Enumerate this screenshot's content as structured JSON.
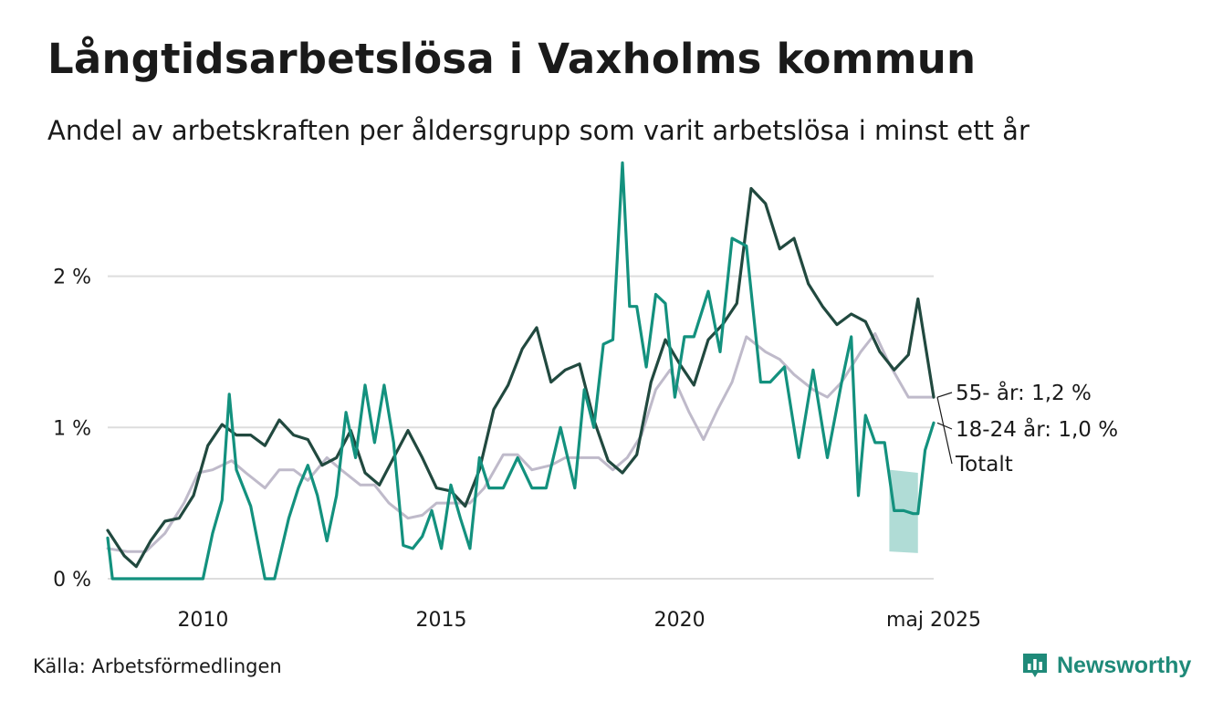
{
  "title": "Långtidsarbetslösa i Vaxholms kommun",
  "subtitle": "Andel av arbetskraften per åldersgrupp som varit arbetslösa i minst ett år",
  "source": "Källa: Arbetsförmedlingen",
  "brand": "Newsworthy",
  "colors": {
    "s55": "#21493f",
    "s1824": "#13917e",
    "total": "#bfbaca",
    "band": "#a7d8d1",
    "grid": "#dddddd"
  },
  "chart_data": {
    "type": "line",
    "ylim": [
      0,
      2.8
    ],
    "xlim": [
      2008.0,
      2025.33
    ],
    "yticks": [
      {
        "v": 0,
        "label": "0 %"
      },
      {
        "v": 1,
        "label": "1 %"
      },
      {
        "v": 2,
        "label": "2 %"
      }
    ],
    "xticks": [
      {
        "v": 2010,
        "label": "2010"
      },
      {
        "v": 2015,
        "label": "2015"
      },
      {
        "v": 2020,
        "label": "2020"
      },
      {
        "v": 2025.33,
        "label": "maj 2025"
      }
    ],
    "series": [
      {
        "key": "total",
        "name": "Totalt",
        "x": [
          2008.0,
          2008.4,
          2008.8,
          2009.2,
          2009.6,
          2009.9,
          2010.2,
          2010.6,
          2010.9,
          2011.3,
          2011.6,
          2011.9,
          2012.2,
          2012.6,
          2012.9,
          2013.3,
          2013.6,
          2013.9,
          2014.3,
          2014.6,
          2014.9,
          2015.3,
          2015.6,
          2015.9,
          2016.3,
          2016.6,
          2016.9,
          2017.3,
          2017.6,
          2017.9,
          2018.3,
          2018.6,
          2018.9,
          2019.2,
          2019.5,
          2019.8,
          2020.2,
          2020.5,
          2020.8,
          2021.1,
          2021.4,
          2021.8,
          2022.1,
          2022.4,
          2022.8,
          2023.1,
          2023.4,
          2023.8,
          2024.1,
          2024.4,
          2024.8,
          2025.1,
          2025.33
        ],
        "values": [
          0.2,
          0.18,
          0.18,
          0.3,
          0.5,
          0.7,
          0.72,
          0.78,
          0.7,
          0.6,
          0.72,
          0.72,
          0.65,
          0.8,
          0.72,
          0.62,
          0.62,
          0.5,
          0.4,
          0.42,
          0.5,
          0.5,
          0.5,
          0.6,
          0.82,
          0.82,
          0.72,
          0.75,
          0.8,
          0.8,
          0.8,
          0.72,
          0.8,
          0.95,
          1.25,
          1.38,
          1.1,
          0.92,
          1.12,
          1.3,
          1.6,
          1.5,
          1.45,
          1.35,
          1.25,
          1.2,
          1.3,
          1.5,
          1.62,
          1.42,
          1.2,
          1.2,
          1.2
        ]
      },
      {
        "key": "s55",
        "name": "55- år",
        "x": [
          2008.0,
          2008.35,
          2008.6,
          2008.9,
          2009.2,
          2009.5,
          2009.8,
          2010.1,
          2010.4,
          2010.7,
          2011.0,
          2011.3,
          2011.6,
          2011.9,
          2012.2,
          2012.5,
          2012.8,
          2013.1,
          2013.4,
          2013.7,
          2014.0,
          2014.3,
          2014.6,
          2014.9,
          2015.2,
          2015.5,
          2015.8,
          2016.1,
          2016.4,
          2016.7,
          2017.0,
          2017.3,
          2017.6,
          2017.9,
          2018.2,
          2018.5,
          2018.8,
          2019.1,
          2019.4,
          2019.7,
          2020.0,
          2020.3,
          2020.6,
          2020.9,
          2021.2,
          2021.5,
          2021.8,
          2022.1,
          2022.4,
          2022.7,
          2023.0,
          2023.3,
          2023.6,
          2023.9,
          2024.2,
          2024.5,
          2024.8,
          2025.0,
          2025.33
        ],
        "values": [
          0.32,
          0.15,
          0.08,
          0.25,
          0.38,
          0.4,
          0.55,
          0.88,
          1.02,
          0.95,
          0.95,
          0.88,
          1.05,
          0.95,
          0.92,
          0.75,
          0.8,
          0.98,
          0.7,
          0.62,
          0.8,
          0.98,
          0.8,
          0.6,
          0.58,
          0.48,
          0.72,
          1.12,
          1.28,
          1.52,
          1.66,
          1.3,
          1.38,
          1.42,
          1.05,
          0.78,
          0.7,
          0.82,
          1.3,
          1.58,
          1.42,
          1.28,
          1.58,
          1.68,
          1.82,
          2.58,
          2.48,
          2.18,
          2.25,
          1.95,
          1.8,
          1.68,
          1.75,
          1.7,
          1.5,
          1.38,
          1.48,
          1.85,
          1.2
        ]
      },
      {
        "key": "s1824",
        "name": "18-24 år",
        "x": [
          2008.0,
          2008.1,
          2008.5,
          2008.9,
          2009.3,
          2009.5,
          2009.8,
          2010.0,
          2010.2,
          2010.4,
          2010.55,
          2010.7,
          2011.0,
          2011.3,
          2011.5,
          2011.8,
          2012.0,
          2012.2,
          2012.4,
          2012.6,
          2012.8,
          2013.0,
          2013.2,
          2013.4,
          2013.6,
          2013.8,
          2014.0,
          2014.2,
          2014.4,
          2014.6,
          2014.8,
          2015.0,
          2015.2,
          2015.4,
          2015.6,
          2015.8,
          2016.0,
          2016.3,
          2016.6,
          2016.9,
          2017.2,
          2017.5,
          2017.8,
          2018.0,
          2018.2,
          2018.4,
          2018.6,
          2018.8,
          2018.95,
          2019.1,
          2019.3,
          2019.5,
          2019.7,
          2019.9,
          2020.1,
          2020.3,
          2020.6,
          2020.85,
          2021.1,
          2021.4,
          2021.7,
          2021.9,
          2022.2,
          2022.5,
          2022.8,
          2023.1,
          2023.4,
          2023.6,
          2023.75,
          2023.9,
          2024.1,
          2024.3,
          2024.5,
          2024.7,
          2024.9,
          2025.0,
          2025.15,
          2025.33
        ],
        "values": [
          0.27,
          0.0,
          0.0,
          0.0,
          0.0,
          0.0,
          0.0,
          0.0,
          0.3,
          0.52,
          1.22,
          0.72,
          0.48,
          0.0,
          0.0,
          0.4,
          0.6,
          0.75,
          0.55,
          0.25,
          0.55,
          1.1,
          0.8,
          1.28,
          0.9,
          1.28,
          0.9,
          0.22,
          0.2,
          0.28,
          0.45,
          0.2,
          0.62,
          0.4,
          0.2,
          0.8,
          0.6,
          0.6,
          0.8,
          0.6,
          0.6,
          1.0,
          0.6,
          1.25,
          1.0,
          1.55,
          1.58,
          2.75,
          1.8,
          1.8,
          1.4,
          1.88,
          1.82,
          1.2,
          1.6,
          1.6,
          1.9,
          1.5,
          2.25,
          2.2,
          1.3,
          1.3,
          1.4,
          0.8,
          1.38,
          0.8,
          1.3,
          1.6,
          0.55,
          1.08,
          0.9,
          0.9,
          0.45,
          0.45,
          0.43,
          0.43,
          0.85,
          1.03
        ]
      }
    ],
    "band": {
      "series": "18-24 år",
      "x": [
        2024.4,
        2025.0
      ],
      "upper": [
        0.72,
        0.7
      ],
      "lower": [
        0.18,
        0.17
      ]
    },
    "end_labels": [
      {
        "key": "s55",
        "text": "55- år: 1,2 %"
      },
      {
        "key": "s1824",
        "text": "18-24 år: 1,0 %"
      },
      {
        "key": "total",
        "text": "Totalt"
      }
    ]
  }
}
